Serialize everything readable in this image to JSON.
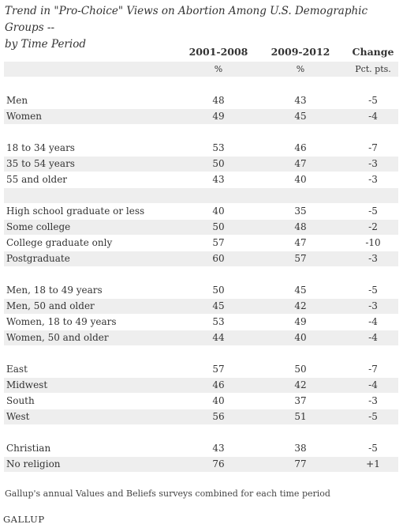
{
  "title_line1": "Trend in \"Pro-Choice\" Views on Abortion Among U.S. Demographic Groups --",
  "title_line2": "by Time Period",
  "headers": [
    "",
    "2001-2008",
    "2009-2012",
    "Change"
  ],
  "subheaders": [
    "",
    "%",
    "%",
    "Pct. pts."
  ],
  "groups": [
    [
      {
        "label": "Men",
        "v1": "48",
        "v2": "43",
        "chg": "-5"
      },
      {
        "label": "Women",
        "v1": "49",
        "v2": "45",
        "chg": "-4"
      }
    ],
    [
      {
        "label": "18 to 34 years",
        "v1": "53",
        "v2": "46",
        "chg": "-7"
      },
      {
        "label": "35 to 54 years",
        "v1": "50",
        "v2": "47",
        "chg": "-3"
      },
      {
        "label": "55 and older",
        "v1": "43",
        "v2": "40",
        "chg": "-3"
      }
    ],
    [
      {
        "label": "High school graduate or less",
        "v1": "40",
        "v2": "35",
        "chg": "-5"
      },
      {
        "label": "Some college",
        "v1": "50",
        "v2": "48",
        "chg": "-2"
      },
      {
        "label": "College graduate only",
        "v1": "57",
        "v2": "47",
        "chg": "-10"
      },
      {
        "label": "Postgraduate",
        "v1": "60",
        "v2": "57",
        "chg": "-3"
      }
    ],
    [
      {
        "label": "Men, 18 to 49 years",
        "v1": "50",
        "v2": "45",
        "chg": "-5"
      },
      {
        "label": "Men, 50 and older",
        "v1": "45",
        "v2": "42",
        "chg": "-3"
      },
      {
        "label": "Women, 18 to 49 years",
        "v1": "53",
        "v2": "49",
        "chg": "-4"
      },
      {
        "label": "Women, 50 and older",
        "v1": "44",
        "v2": "40",
        "chg": "-4"
      }
    ],
    [
      {
        "label": "East",
        "v1": "57",
        "v2": "50",
        "chg": "-7"
      },
      {
        "label": "Midwest",
        "v1": "46",
        "v2": "42",
        "chg": "-4"
      },
      {
        "label": "South",
        "v1": "40",
        "v2": "37",
        "chg": "-3"
      },
      {
        "label": "West",
        "v1": "56",
        "v2": "51",
        "chg": "-5"
      }
    ],
    [
      {
        "label": "Christian",
        "v1": "43",
        "v2": "38",
        "chg": "-5"
      },
      {
        "label": "No religion",
        "v1": "76",
        "v2": "77",
        "chg": "+1"
      }
    ]
  ],
  "note": "Gallup's annual Values and Beliefs surveys combined for each time period",
  "logo": "GALLUP",
  "colors": {
    "shade": "#eeeeee",
    "text": "#333333"
  }
}
